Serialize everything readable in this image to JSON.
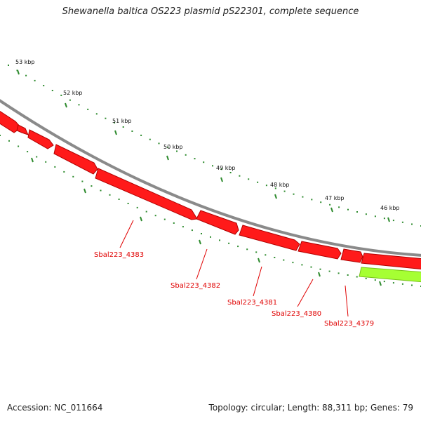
{
  "title": "Shewanella baltica OS223 plasmid pS22301, complete sequence",
  "footer": {
    "accession": "Accession: NC_011664",
    "summary": "Topology: circular; Length: 88,311 bp; Genes: 79"
  },
  "scale_labels": [
    "53 kbp",
    "52 kbp",
    "51 kbp",
    "50 kbp",
    "49 kbp",
    "48 kbp",
    "47 kbp",
    "46 kbp"
  ],
  "gene_labels": [
    "Sbal223_4383",
    "Sbal223_4382",
    "Sbal223_4381",
    "Sbal223_4380",
    "Sbal223_4379"
  ],
  "colors": {
    "backbone": "#8a8a8a",
    "cds": "#ff1a1a",
    "cds_shadow": "#b00000",
    "feature_other": "#a6ff33",
    "ticks": "#2e8b2e",
    "gene_label": "#e00000"
  }
}
